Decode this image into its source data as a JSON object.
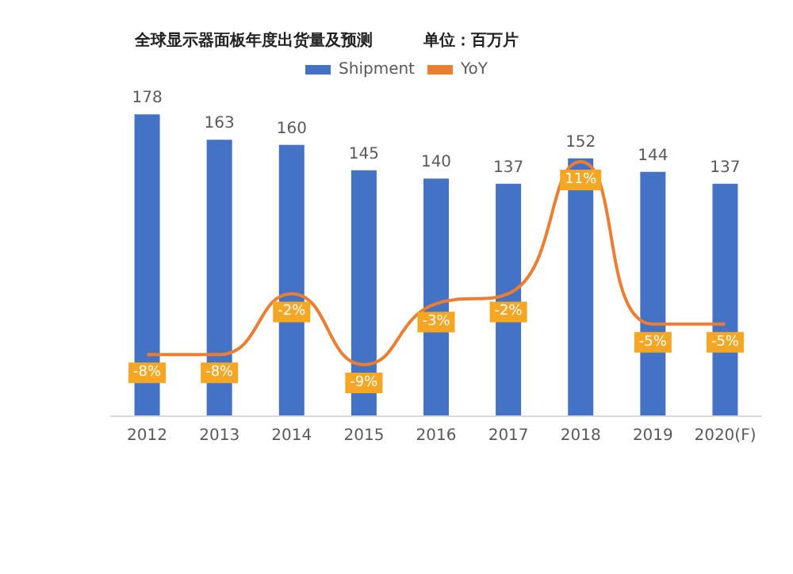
{
  "chart_data": {
    "type": "bar",
    "title": "全球显示器面板年度出货量及预测",
    "subtitle": "单位：百万片",
    "categories": [
      "2012",
      "2013",
      "2014",
      "2015",
      "2016",
      "2017",
      "2018",
      "2019",
      "2020(F)"
    ],
    "series": [
      {
        "name": "Shipment",
        "color": "#4472c4",
        "values": [
          178,
          163,
          160,
          145,
          140,
          137,
          152,
          144,
          137
        ]
      },
      {
        "name": "YoY",
        "type": "line",
        "axis": "y2",
        "color": "#ed7d31",
        "values": [
          -8,
          -8,
          -2,
          -9,
          -3,
          -2,
          11,
          -5,
          -5
        ],
        "value_labels": [
          "-8%",
          "-8%",
          "-2%",
          "-9%",
          "-3%",
          "-2%",
          "11%",
          "-5%",
          "-5%"
        ]
      }
    ],
    "data_labels": true,
    "legend": "top",
    "tick_labels": "x",
    "marker": "none"
  }
}
